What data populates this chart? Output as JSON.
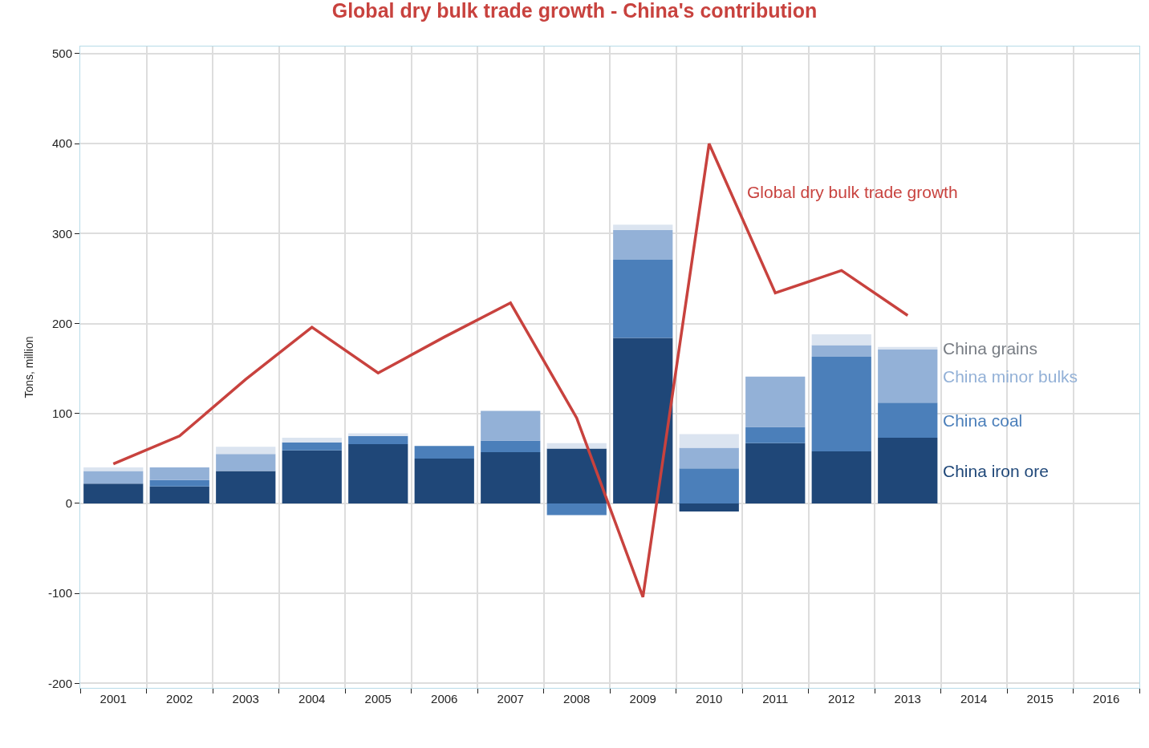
{
  "chart_data": {
    "type": "bar",
    "stacked": true,
    "title": "Global dry bulk trade growth - China's contribution",
    "ylabel": "Tons, million",
    "categories": [
      "2001",
      "2002",
      "2003",
      "2004",
      "2005",
      "2006",
      "2007",
      "2008",
      "2009",
      "2010",
      "2011",
      "2012",
      "2013",
      "2014",
      "2015",
      "2016"
    ],
    "series": [
      {
        "name": "China iron ore",
        "color": "#1f4778",
        "values": [
          22,
          19,
          36,
          59,
          66,
          50,
          57,
          61,
          184,
          -9,
          67,
          58,
          73,
          null,
          null,
          null
        ]
      },
      {
        "name": "China coal",
        "color": "#4b7fba",
        "values": [
          0,
          7,
          0,
          9,
          9,
          14,
          13,
          -13,
          87,
          39,
          18,
          105,
          39,
          null,
          null,
          null
        ]
      },
      {
        "name": "China minor bulks",
        "color": "#93b1d7",
        "values": [
          14,
          14,
          19,
          0,
          0,
          0,
          33,
          0,
          33,
          23,
          56,
          13,
          59,
          null,
          null,
          null
        ]
      },
      {
        "name": "China grains",
        "color": "#dbe4f0",
        "values": [
          4,
          0,
          8,
          5,
          3,
          0,
          0,
          6,
          6,
          15,
          0,
          12,
          3,
          null,
          null,
          null
        ]
      },
      {
        "name": "Global dry bulk trade growth",
        "type": "line",
        "color": "#c8423e",
        "values": [
          44,
          75,
          138,
          196,
          145,
          185,
          223,
          95,
          -104,
          400,
          234,
          259,
          209,
          null,
          null,
          null
        ]
      }
    ],
    "ylim": [
      -205,
      508
    ],
    "yticks": [
      -200,
      -100,
      0,
      100,
      200,
      300,
      400,
      500
    ],
    "grid": true
  }
}
